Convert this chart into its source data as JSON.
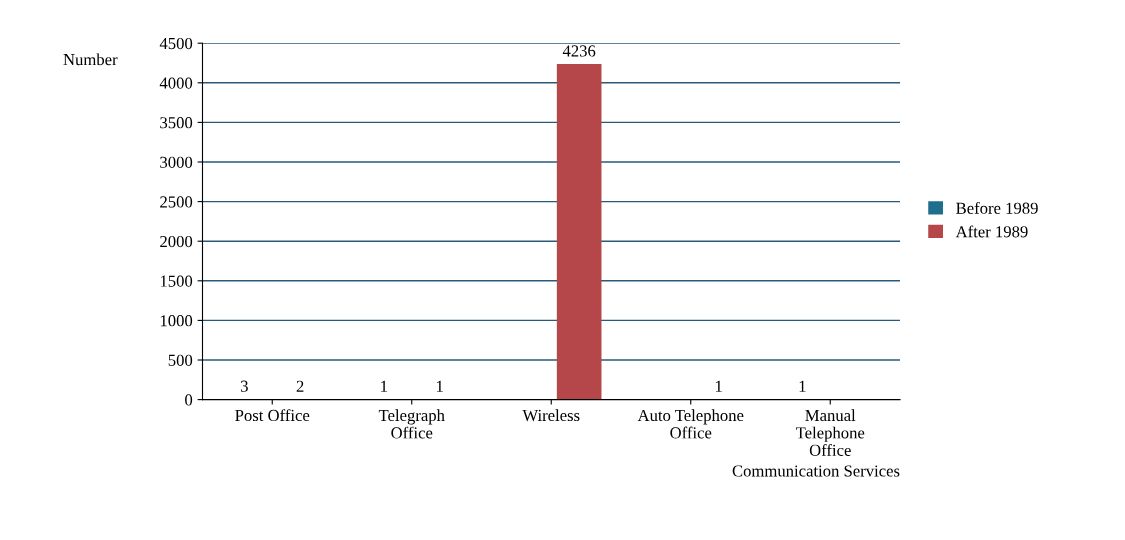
{
  "chart_data": {
    "type": "bar",
    "ylabel": "Number",
    "xlabel": "Communication Services",
    "categories": [
      "Post Office",
      "Telegraph\nOffice",
      "Wireless",
      "Auto Telephone\nOffice",
      "Manual\nTelephone\nOffice"
    ],
    "series": [
      {
        "name": "Before 1989",
        "color": "#1f6e8c",
        "values": [
          3,
          1,
          null,
          null,
          1
        ]
      },
      {
        "name": "After 1989",
        "color": "#b5464a",
        "values": [
          2,
          1,
          4236,
          1,
          null
        ]
      }
    ],
    "ylim": [
      0,
      4500
    ],
    "yticks": [
      0,
      500,
      1000,
      1500,
      2000,
      2500,
      3000,
      3500,
      4000,
      4500
    ],
    "grid": "y",
    "legend": "right",
    "data_labels": true
  }
}
